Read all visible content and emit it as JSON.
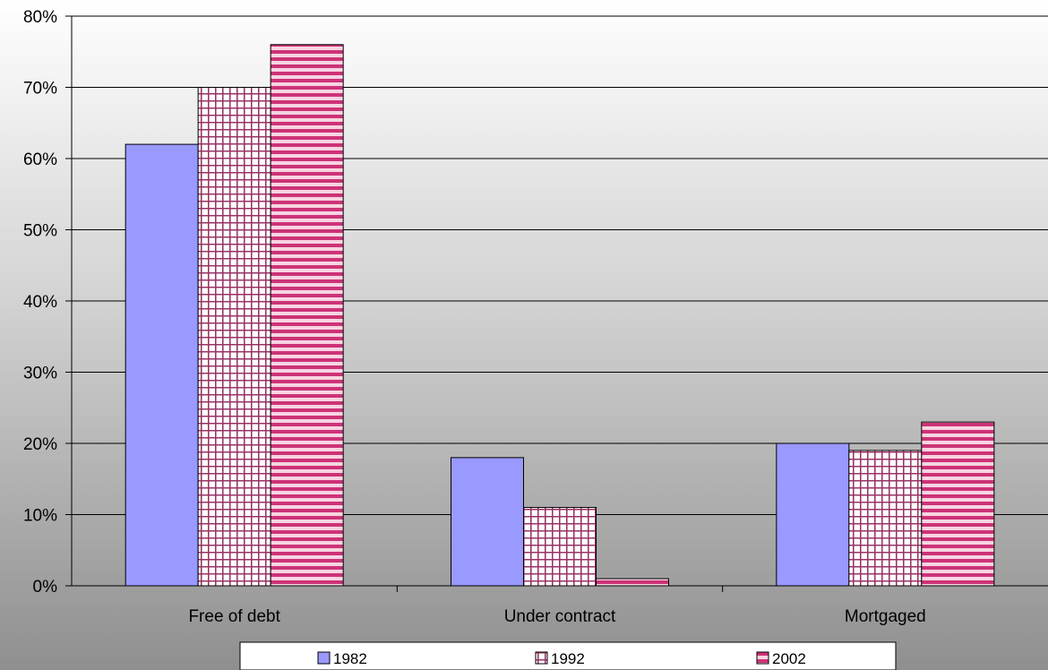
{
  "chart_data": {
    "type": "bar",
    "title": "",
    "xlabel": "",
    "ylabel": "",
    "categories": [
      "Free of debt",
      "Under contract",
      "Mortgaged"
    ],
    "series": [
      {
        "name": "1982",
        "values": [
          62,
          18,
          20
        ],
        "color": "#9999ff",
        "pattern": "solid"
      },
      {
        "name": "1992",
        "values": [
          70,
          11,
          19
        ],
        "color": "#993366",
        "pattern": "grid"
      },
      {
        "name": "2002",
        "values": [
          76,
          1,
          23
        ],
        "color": "#cc3377",
        "pattern": "horizontal-stripes"
      }
    ],
    "ylim": [
      0,
      80
    ],
    "yticks": [
      0,
      10,
      20,
      30,
      40,
      50,
      60,
      70,
      80
    ],
    "ytick_labels": [
      "0%",
      "10%",
      "20%",
      "30%",
      "40%",
      "50%",
      "60%",
      "70%",
      "80%"
    ],
    "grid": true,
    "legend_position": "bottom"
  }
}
